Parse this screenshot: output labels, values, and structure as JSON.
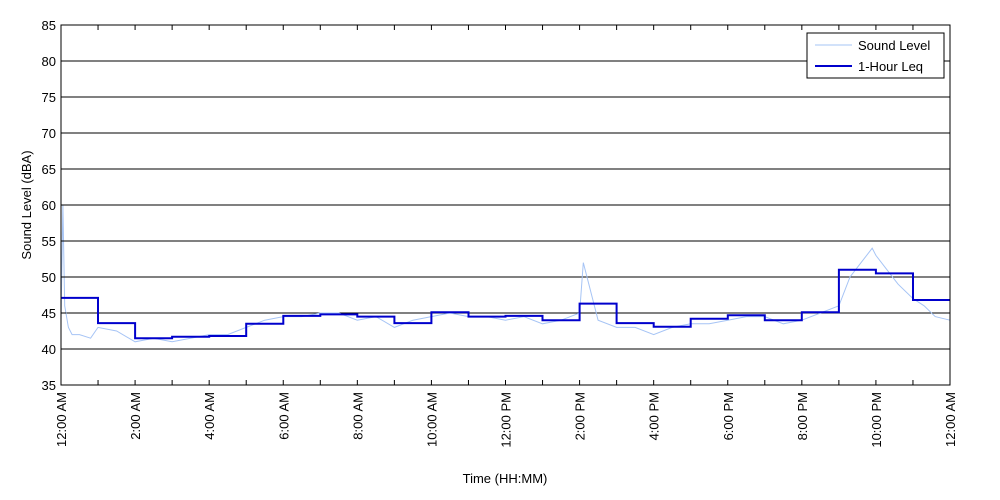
{
  "chart_data": {
    "type": "line",
    "xlabel": "Time (HH:MM)",
    "ylabel": "Sound Level (dBA)",
    "ylim": [
      35,
      85
    ],
    "yticks": [
      35,
      40,
      45,
      50,
      55,
      60,
      65,
      70,
      75,
      80,
      85
    ],
    "xlim_hours": [
      0,
      24
    ],
    "xticks": [
      {
        "hour": 0,
        "label": "12:00 AM"
      },
      {
        "hour": 2,
        "label": "2:00 AM"
      },
      {
        "hour": 4,
        "label": "4:00 AM"
      },
      {
        "hour": 6,
        "label": "6:00 AM"
      },
      {
        "hour": 8,
        "label": "8:00 AM"
      },
      {
        "hour": 10,
        "label": "10:00 AM"
      },
      {
        "hour": 12,
        "label": "12:00 PM"
      },
      {
        "hour": 14,
        "label": "2:00 PM"
      },
      {
        "hour": 16,
        "label": "4:00 PM"
      },
      {
        "hour": 18,
        "label": "6:00 PM"
      },
      {
        "hour": 20,
        "label": "8:00 PM"
      },
      {
        "hour": 22,
        "label": "10:00 PM"
      },
      {
        "hour": 24,
        "label": "12:00 AM"
      }
    ],
    "grid": "horizontal",
    "legend_position": "top-right",
    "series": [
      {
        "name": "Sound Level",
        "color": "#a6c4f5",
        "style": "thin noisy line",
        "x_hours": [
          0,
          0.05,
          0.1,
          0.2,
          0.3,
          0.5,
          0.8,
          1.0,
          1.5,
          2.0,
          2.5,
          3.0,
          3.5,
          4.0,
          4.5,
          5.0,
          5.5,
          6.0,
          6.5,
          7.0,
          7.5,
          8.0,
          8.5,
          9.0,
          9.5,
          10.0,
          10.5,
          11.0,
          11.5,
          12.0,
          12.5,
          13.0,
          13.5,
          14.0,
          14.1,
          14.5,
          15.0,
          15.5,
          16.0,
          16.5,
          17.0,
          17.5,
          18.0,
          18.5,
          19.0,
          19.5,
          20.0,
          20.5,
          21.0,
          21.3,
          21.6,
          21.9,
          22.0,
          22.3,
          22.6,
          23.0,
          23.3,
          23.6,
          24.0
        ],
        "y_dba": [
          44,
          60,
          46,
          43,
          42,
          42,
          41.5,
          43,
          42.5,
          41,
          41.5,
          41,
          41.5,
          42,
          42,
          43,
          44,
          44.5,
          44.5,
          45,
          45,
          44,
          44.5,
          43,
          44,
          44.5,
          45,
          44.5,
          44.5,
          44,
          44.5,
          43.5,
          44,
          45,
          52,
          44,
          43,
          43,
          42,
          43,
          43.5,
          43.5,
          44,
          44.5,
          44.5,
          43.5,
          44,
          45,
          46,
          50,
          52,
          54,
          53,
          51,
          49,
          47,
          46,
          44.5,
          44
        ]
      },
      {
        "name": "1-Hour Leq",
        "color": "#0000cc",
        "style": "step",
        "x_hours": [
          0,
          1,
          2,
          3,
          4,
          5,
          6,
          7,
          8,
          9,
          10,
          11,
          12,
          13,
          14,
          15,
          16,
          17,
          18,
          19,
          20,
          21,
          22,
          23
        ],
        "y_dba": [
          47.1,
          43.6,
          41.5,
          41.7,
          41.8,
          43.5,
          44.6,
          44.8,
          44.5,
          43.6,
          45.1,
          44.5,
          44.6,
          44,
          46.3,
          43.6,
          43.1,
          44.2,
          44.7,
          44,
          45.1,
          51,
          50.5,
          46.8
        ]
      }
    ]
  }
}
